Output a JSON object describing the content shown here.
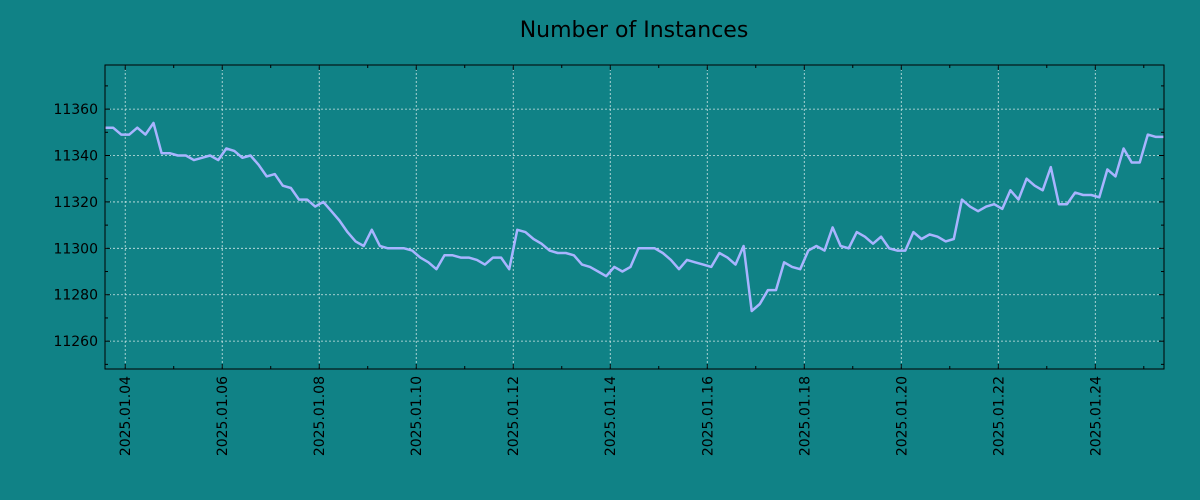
{
  "chart_data": {
    "type": "line",
    "title": "Number of Instances",
    "xlabel": "",
    "ylabel": "",
    "grid": true,
    "colors": {
      "background": "#108286",
      "line": "#a8b4ff",
      "grid": "#cfe6e6",
      "axis": "#000000"
    },
    "xlim": [
      "2025-01-03 14:00",
      "2025-01-25 10:00"
    ],
    "ylim": [
      11248,
      11379
    ],
    "x_ticks": [
      "2025.01.04",
      "2025.01.06",
      "2025.01.08",
      "2025.01.10",
      "2025.01.12",
      "2025.01.14",
      "2025.01.16",
      "2025.01.18",
      "2025.01.20",
      "2025.01.22",
      "2025.01.24"
    ],
    "y_ticks": [
      11260,
      11280,
      11300,
      11320,
      11340,
      11360
    ],
    "series": [
      {
        "x": [
          "2025-01-03 14:00",
          "2025-01-03 18:00",
          "2025-01-03 22:00",
          "2025-01-04 02:00",
          "2025-01-04 06:00",
          "2025-01-04 10:00",
          "2025-01-04 14:00",
          "2025-01-04 18:00",
          "2025-01-04 22:00",
          "2025-01-05 02:00",
          "2025-01-05 06:00",
          "2025-01-05 10:00",
          "2025-01-05 14:00",
          "2025-01-05 18:00",
          "2025-01-05 22:00",
          "2025-01-06 02:00",
          "2025-01-06 06:00",
          "2025-01-06 10:00",
          "2025-01-06 14:00",
          "2025-01-06 18:00",
          "2025-01-06 22:00",
          "2025-01-07 02:00",
          "2025-01-07 06:00",
          "2025-01-07 10:00",
          "2025-01-07 14:00",
          "2025-01-07 18:00",
          "2025-01-07 22:00",
          "2025-01-08 02:00",
          "2025-01-08 06:00",
          "2025-01-08 10:00",
          "2025-01-08 14:00",
          "2025-01-08 18:00",
          "2025-01-08 22:00",
          "2025-01-09 02:00",
          "2025-01-09 06:00",
          "2025-01-09 10:00",
          "2025-01-09 14:00",
          "2025-01-09 18:00",
          "2025-01-09 22:00",
          "2025-01-10 02:00",
          "2025-01-10 06:00",
          "2025-01-10 10:00",
          "2025-01-10 14:00",
          "2025-01-10 18:00",
          "2025-01-10 22:00",
          "2025-01-11 02:00",
          "2025-01-11 06:00",
          "2025-01-11 10:00",
          "2025-01-11 14:00",
          "2025-01-11 18:00",
          "2025-01-11 22:00",
          "2025-01-12 02:00",
          "2025-01-12 06:00",
          "2025-01-12 10:00",
          "2025-01-12 14:00",
          "2025-01-12 18:00",
          "2025-01-12 22:00",
          "2025-01-13 02:00",
          "2025-01-13 06:00",
          "2025-01-13 10:00",
          "2025-01-13 14:00",
          "2025-01-13 18:00",
          "2025-01-13 22:00",
          "2025-01-14 02:00",
          "2025-01-14 06:00",
          "2025-01-14 10:00",
          "2025-01-14 14:00",
          "2025-01-14 18:00",
          "2025-01-14 22:00",
          "2025-01-15 02:00",
          "2025-01-15 06:00",
          "2025-01-15 10:00",
          "2025-01-15 14:00",
          "2025-01-15 18:00",
          "2025-01-15 22:00",
          "2025-01-16 02:00",
          "2025-01-16 06:00",
          "2025-01-16 10:00",
          "2025-01-16 14:00",
          "2025-01-16 18:00",
          "2025-01-16 22:00",
          "2025-01-17 02:00",
          "2025-01-17 06:00",
          "2025-01-17 10:00",
          "2025-01-17 14:00",
          "2025-01-17 18:00",
          "2025-01-17 22:00",
          "2025-01-18 02:00",
          "2025-01-18 06:00",
          "2025-01-18 10:00",
          "2025-01-18 14:00",
          "2025-01-18 18:00",
          "2025-01-18 22:00",
          "2025-01-19 02:00",
          "2025-01-19 06:00",
          "2025-01-19 10:00",
          "2025-01-19 14:00",
          "2025-01-19 18:00",
          "2025-01-19 22:00",
          "2025-01-20 02:00",
          "2025-01-20 06:00",
          "2025-01-20 10:00",
          "2025-01-20 14:00",
          "2025-01-20 18:00",
          "2025-01-20 22:00",
          "2025-01-21 02:00",
          "2025-01-21 06:00",
          "2025-01-21 10:00",
          "2025-01-21 14:00",
          "2025-01-21 18:00",
          "2025-01-21 22:00",
          "2025-01-22 02:00",
          "2025-01-22 06:00",
          "2025-01-22 10:00",
          "2025-01-22 14:00",
          "2025-01-22 18:00",
          "2025-01-22 22:00",
          "2025-01-23 02:00",
          "2025-01-23 06:00",
          "2025-01-23 10:00",
          "2025-01-23 14:00",
          "2025-01-23 18:00",
          "2025-01-23 22:00",
          "2025-01-24 02:00",
          "2025-01-24 06:00",
          "2025-01-24 10:00",
          "2025-01-24 14:00",
          "2025-01-24 18:00",
          "2025-01-24 22:00",
          "2025-01-25 02:00",
          "2025-01-25 06:00",
          "2025-01-25 10:00"
        ],
        "values": [
          11352,
          11352,
          11349,
          11349,
          11352,
          11349,
          11354,
          11341,
          11341,
          11340,
          11340,
          11338,
          11339,
          11340,
          11338,
          11343,
          11342,
          11339,
          11340,
          11336,
          11331,
          11332,
          11327,
          11326,
          11321,
          11321,
          11318,
          11320,
          11316,
          11312,
          11307,
          11303,
          11301,
          11308,
          11301,
          11300,
          11300,
          11300,
          11299,
          11296,
          11294,
          11291,
          11297,
          11297,
          11296,
          11296,
          11295,
          11293,
          11296,
          11296,
          11291,
          11308,
          11307,
          11304,
          11302,
          11299,
          11298,
          11298,
          11297,
          11293,
          11292,
          11290,
          11288,
          11292,
          11290,
          11292,
          11300,
          11300,
          11300,
          11298,
          11295,
          11291,
          11295,
          11294,
          11293,
          11292,
          11298,
          11296,
          11293,
          11301,
          11273,
          11276,
          11282,
          11282,
          11294,
          11292,
          11291,
          11299,
          11301,
          11299,
          11309,
          11301,
          11300,
          11307,
          11305,
          11302,
          11305,
          11300,
          11299,
          11299,
          11307,
          11304,
          11306,
          11305,
          11303,
          11304,
          11321,
          11318,
          11316,
          11318,
          11319,
          11317,
          11325,
          11321,
          11330,
          11327,
          11325,
          11335,
          11319,
          11319,
          11324,
          11323,
          11323,
          11322,
          11334,
          11331,
          11343,
          11337,
          11337,
          11349,
          11348,
          11348
        ]
      }
    ]
  }
}
